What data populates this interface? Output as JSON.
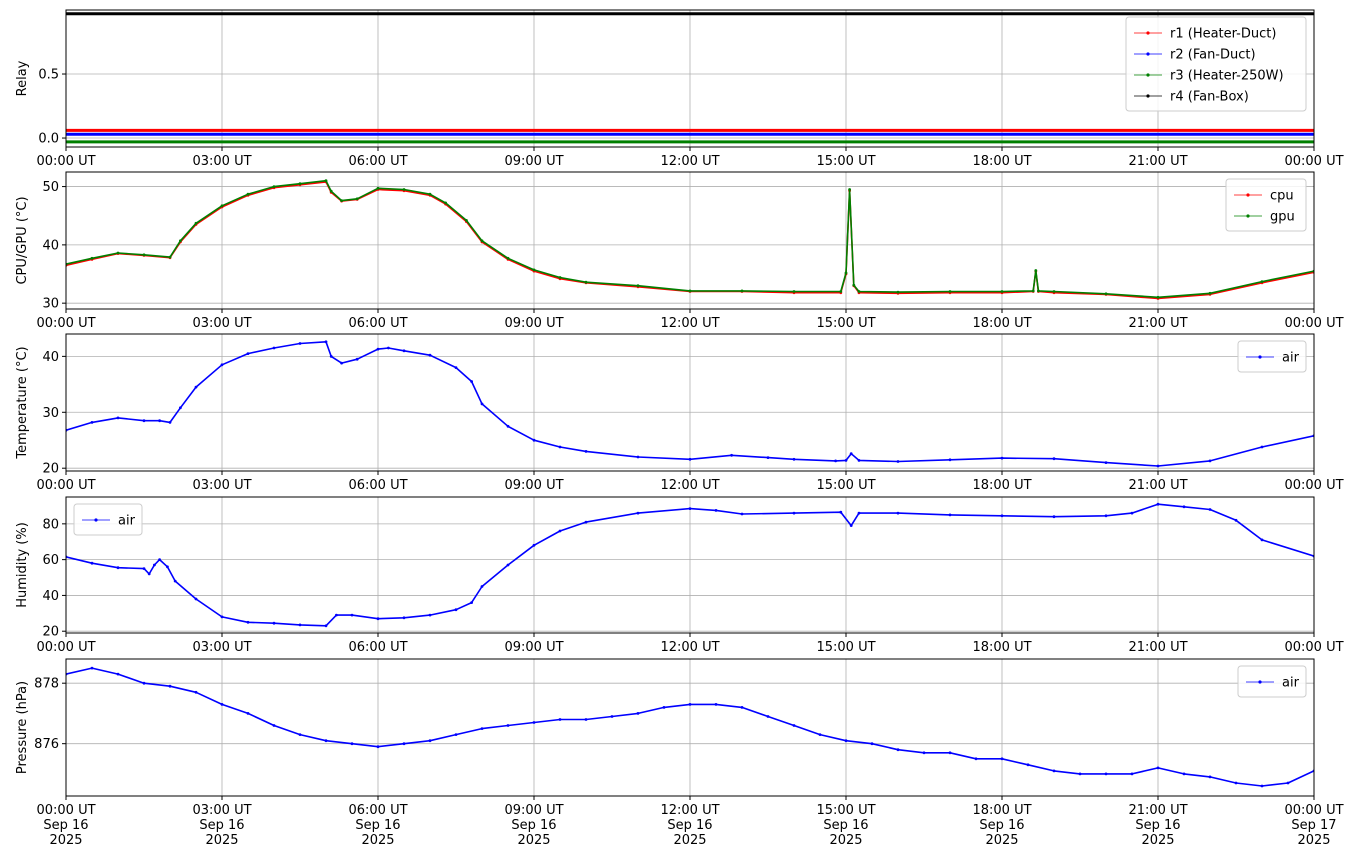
{
  "chart_data": [
    {
      "type": "line",
      "ylabel": "Relay",
      "ylim": [
        -0.07,
        1.0
      ],
      "yticks": [
        0.0,
        0.5
      ],
      "ytick_labels": [
        "0.0",
        "0.5"
      ],
      "xtick_labels": [
        "00:00 UT",
        "03:00 UT",
        "06:00 UT",
        "09:00 UT",
        "12:00 UT",
        "15:00 UT",
        "18:00 UT",
        "21:00 UT",
        "00:00 UT"
      ],
      "grid": true,
      "legend": "top-right",
      "series": [
        {
          "name": "r1 (Heater-Duct)",
          "color": "#ff0000",
          "x": [
            0,
            24
          ],
          "y": [
            0.06,
            0.06
          ]
        },
        {
          "name": "r2 (Fan-Duct)",
          "color": "#0000ff",
          "x": [
            0,
            24
          ],
          "y": [
            0.03,
            0.03
          ]
        },
        {
          "name": "r3 (Heater-250W)",
          "color": "#008000",
          "x": [
            0,
            24
          ],
          "y": [
            -0.03,
            -0.03
          ]
        },
        {
          "name": "r4 (Fan-Box)",
          "color": "#000000",
          "x": [
            0,
            24
          ],
          "y": [
            0.97,
            0.97
          ]
        }
      ]
    },
    {
      "type": "line",
      "ylabel": "CPU/GPU (°C)",
      "ylim": [
        29,
        52.5
      ],
      "yticks": [
        30,
        40,
        50
      ],
      "ytick_labels": [
        "30",
        "40",
        "50"
      ],
      "xtick_labels": [
        "00:00 UT",
        "03:00 UT",
        "06:00 UT",
        "09:00 UT",
        "12:00 UT",
        "15:00 UT",
        "18:00 UT",
        "21:00 UT",
        "00:00 UT"
      ],
      "grid": true,
      "legend": "top-right",
      "series": [
        {
          "name": "cpu",
          "color": "#ff0000",
          "x": [
            0,
            0.5,
            1,
            1.5,
            2,
            2.2,
            2.5,
            3,
            3.5,
            4,
            4.5,
            5,
            5.1,
            5.3,
            5.6,
            6,
            6.5,
            7,
            7.3,
            7.7,
            8,
            8.5,
            9,
            9.5,
            10,
            11,
            12,
            13,
            14,
            14.9,
            15.0,
            15.07,
            15.15,
            15.25,
            16,
            17,
            18,
            18.6,
            18.65,
            18.7,
            19,
            20,
            21,
            22,
            23,
            24
          ],
          "y": [
            36.5,
            37.5,
            38.5,
            38.2,
            37.8,
            40.5,
            43.5,
            46.5,
            48.5,
            49.8,
            50.3,
            50.8,
            49,
            47.5,
            47.8,
            49.5,
            49.3,
            48.5,
            47,
            44,
            40.5,
            37.5,
            35.5,
            34.2,
            33.5,
            32.8,
            32.0,
            32.0,
            31.8,
            31.8,
            35.0,
            49.3,
            33.0,
            31.8,
            31.7,
            31.8,
            31.8,
            32.0,
            35.5,
            32.0,
            31.8,
            31.5,
            30.8,
            31.5,
            33.5,
            35.3
          ]
        },
        {
          "name": "gpu",
          "color": "#008000",
          "x": [
            0,
            0.5,
            1,
            1.5,
            2,
            2.2,
            2.5,
            3,
            3.5,
            4,
            4.5,
            5,
            5.1,
            5.3,
            5.6,
            6,
            6.5,
            7,
            7.3,
            7.7,
            8,
            8.5,
            9,
            9.5,
            10,
            11,
            12,
            13,
            14,
            14.9,
            15.0,
            15.07,
            15.15,
            15.25,
            16,
            17,
            18,
            18.6,
            18.65,
            18.7,
            19,
            20,
            21,
            22,
            23,
            24
          ],
          "y": [
            36.7,
            37.7,
            38.6,
            38.3,
            37.9,
            40.7,
            43.7,
            46.7,
            48.7,
            50.0,
            50.5,
            51.0,
            49.2,
            47.6,
            47.9,
            49.7,
            49.5,
            48.7,
            47.2,
            44.2,
            40.7,
            37.7,
            35.7,
            34.4,
            33.6,
            33.0,
            32.1,
            32.1,
            32.0,
            32.0,
            35.2,
            49.5,
            33.1,
            32.0,
            31.9,
            32.0,
            32.0,
            32.1,
            35.6,
            32.1,
            32.0,
            31.6,
            31.0,
            31.7,
            33.7,
            35.5
          ]
        }
      ]
    },
    {
      "type": "line",
      "ylabel": "Temperature (°C)",
      "ylim": [
        19.5,
        44
      ],
      "yticks": [
        20,
        30,
        40
      ],
      "ytick_labels": [
        "20",
        "30",
        "40"
      ],
      "xtick_labels": [
        "00:00 UT",
        "03:00 UT",
        "06:00 UT",
        "09:00 UT",
        "12:00 UT",
        "15:00 UT",
        "18:00 UT",
        "21:00 UT",
        "00:00 UT"
      ],
      "grid": true,
      "legend": "top-right",
      "series": [
        {
          "name": "air",
          "color": "#0000ff",
          "x": [
            0,
            0.5,
            1,
            1.5,
            1.8,
            2.0,
            2.2,
            2.5,
            3,
            3.5,
            4,
            4.5,
            5.0,
            5.1,
            5.3,
            5.6,
            6.0,
            6.2,
            6.5,
            7,
            7.5,
            7.8,
            8,
            8.5,
            9,
            9.5,
            10,
            11,
            12,
            12.8,
            13.5,
            14,
            14.8,
            15.0,
            15.1,
            15.25,
            16,
            17,
            18,
            19,
            20,
            21,
            22,
            23,
            24
          ],
          "y": [
            26.8,
            28.2,
            29.0,
            28.5,
            28.5,
            28.2,
            30.8,
            34.5,
            38.5,
            40.5,
            41.5,
            42.3,
            42.6,
            40.0,
            38.8,
            39.5,
            41.3,
            41.5,
            41.0,
            40.2,
            38.0,
            35.5,
            31.5,
            27.5,
            25.0,
            23.8,
            23.0,
            22.0,
            21.6,
            22.3,
            21.9,
            21.6,
            21.3,
            21.4,
            22.6,
            21.4,
            21.2,
            21.5,
            21.8,
            21.7,
            21.0,
            20.4,
            21.3,
            23.8,
            25.8
          ]
        }
      ]
    },
    {
      "type": "line",
      "ylabel": "Humidity (%)",
      "ylim": [
        19,
        95
      ],
      "yticks": [
        20,
        40,
        60,
        80
      ],
      "ytick_labels": [
        "20",
        "40",
        "60",
        "80"
      ],
      "xtick_labels": [
        "00:00 UT",
        "03:00 UT",
        "06:00 UT",
        "09:00 UT",
        "12:00 UT",
        "15:00 UT",
        "18:00 UT",
        "21:00 UT",
        "00:00 UT"
      ],
      "grid": true,
      "legend": "top-left",
      "series": [
        {
          "name": "air",
          "color": "#0000ff",
          "x": [
            0,
            0.5,
            1,
            1.5,
            1.6,
            1.7,
            1.8,
            1.95,
            2.1,
            2.5,
            3,
            3.5,
            4,
            4.5,
            5.0,
            5.2,
            5.5,
            6,
            6.5,
            7,
            7.5,
            7.8,
            8.0,
            8.5,
            9,
            9.5,
            10,
            11,
            12,
            12.5,
            13,
            14,
            14.9,
            15.1,
            15.25,
            16,
            17,
            18,
            19,
            20,
            20.5,
            21,
            21.5,
            22,
            22.5,
            23,
            24
          ],
          "y": [
            61.5,
            58,
            55.5,
            55,
            52,
            57,
            60,
            56,
            48,
            38,
            28,
            25,
            24.5,
            23.5,
            23,
            29,
            29,
            27,
            27.5,
            29,
            32,
            36,
            45,
            57,
            68,
            76,
            81,
            86,
            88.5,
            87.5,
            85.5,
            86,
            86.5,
            79,
            86,
            86,
            85,
            84.5,
            84,
            84.5,
            86,
            91,
            89.5,
            88,
            82,
            71,
            62
          ]
        }
      ]
    },
    {
      "type": "line",
      "ylabel": "Pressure (hPa)",
      "ylim": [
        874.27,
        878.8
      ],
      "yticks": [
        876,
        878
      ],
      "ytick_labels": [
        "876",
        "878"
      ],
      "xtick_labels": [
        "00:00 UT\nSep 16\n2025",
        "03:00 UT\nSep 16\n2025",
        "06:00 UT\nSep 16\n2025",
        "09:00 UT\nSep 16\n2025",
        "12:00 UT\nSep 16\n2025",
        "15:00 UT\nSep 16\n2025",
        "18:00 UT\nSep 16\n2025",
        "21:00 UT\nSep 16\n2025",
        "00:00 UT\nSep 17\n2025"
      ],
      "grid": true,
      "legend": "top-right",
      "series": [
        {
          "name": "air",
          "color": "#0000ff",
          "x": [
            0,
            0.5,
            1,
            1.5,
            2,
            2.5,
            3,
            3.5,
            4,
            4.5,
            5,
            5.5,
            6,
            6.5,
            7,
            7.5,
            8,
            8.5,
            9,
            9.5,
            10,
            10.5,
            11,
            11.5,
            12,
            12.5,
            13,
            13.5,
            14,
            14.5,
            15,
            15.5,
            16,
            16.5,
            17,
            17.5,
            18,
            18.5,
            19,
            19.5,
            20,
            20.5,
            21,
            21.5,
            22,
            22.5,
            23,
            23.5,
            24
          ],
          "y": [
            878.3,
            878.5,
            878.3,
            878.0,
            877.9,
            877.7,
            877.3,
            877.0,
            876.6,
            876.3,
            876.1,
            876.0,
            875.9,
            876.0,
            876.1,
            876.3,
            876.5,
            876.6,
            876.7,
            876.8,
            876.8,
            876.9,
            877.0,
            877.2,
            877.3,
            877.3,
            877.2,
            876.9,
            876.6,
            876.3,
            876.1,
            876.0,
            875.8,
            875.7,
            875.7,
            875.5,
            875.5,
            875.3,
            875.1,
            875.0,
            875.0,
            875.0,
            875.2,
            875.0,
            874.9,
            874.7,
            874.6,
            874.7,
            875.1
          ]
        }
      ]
    }
  ]
}
